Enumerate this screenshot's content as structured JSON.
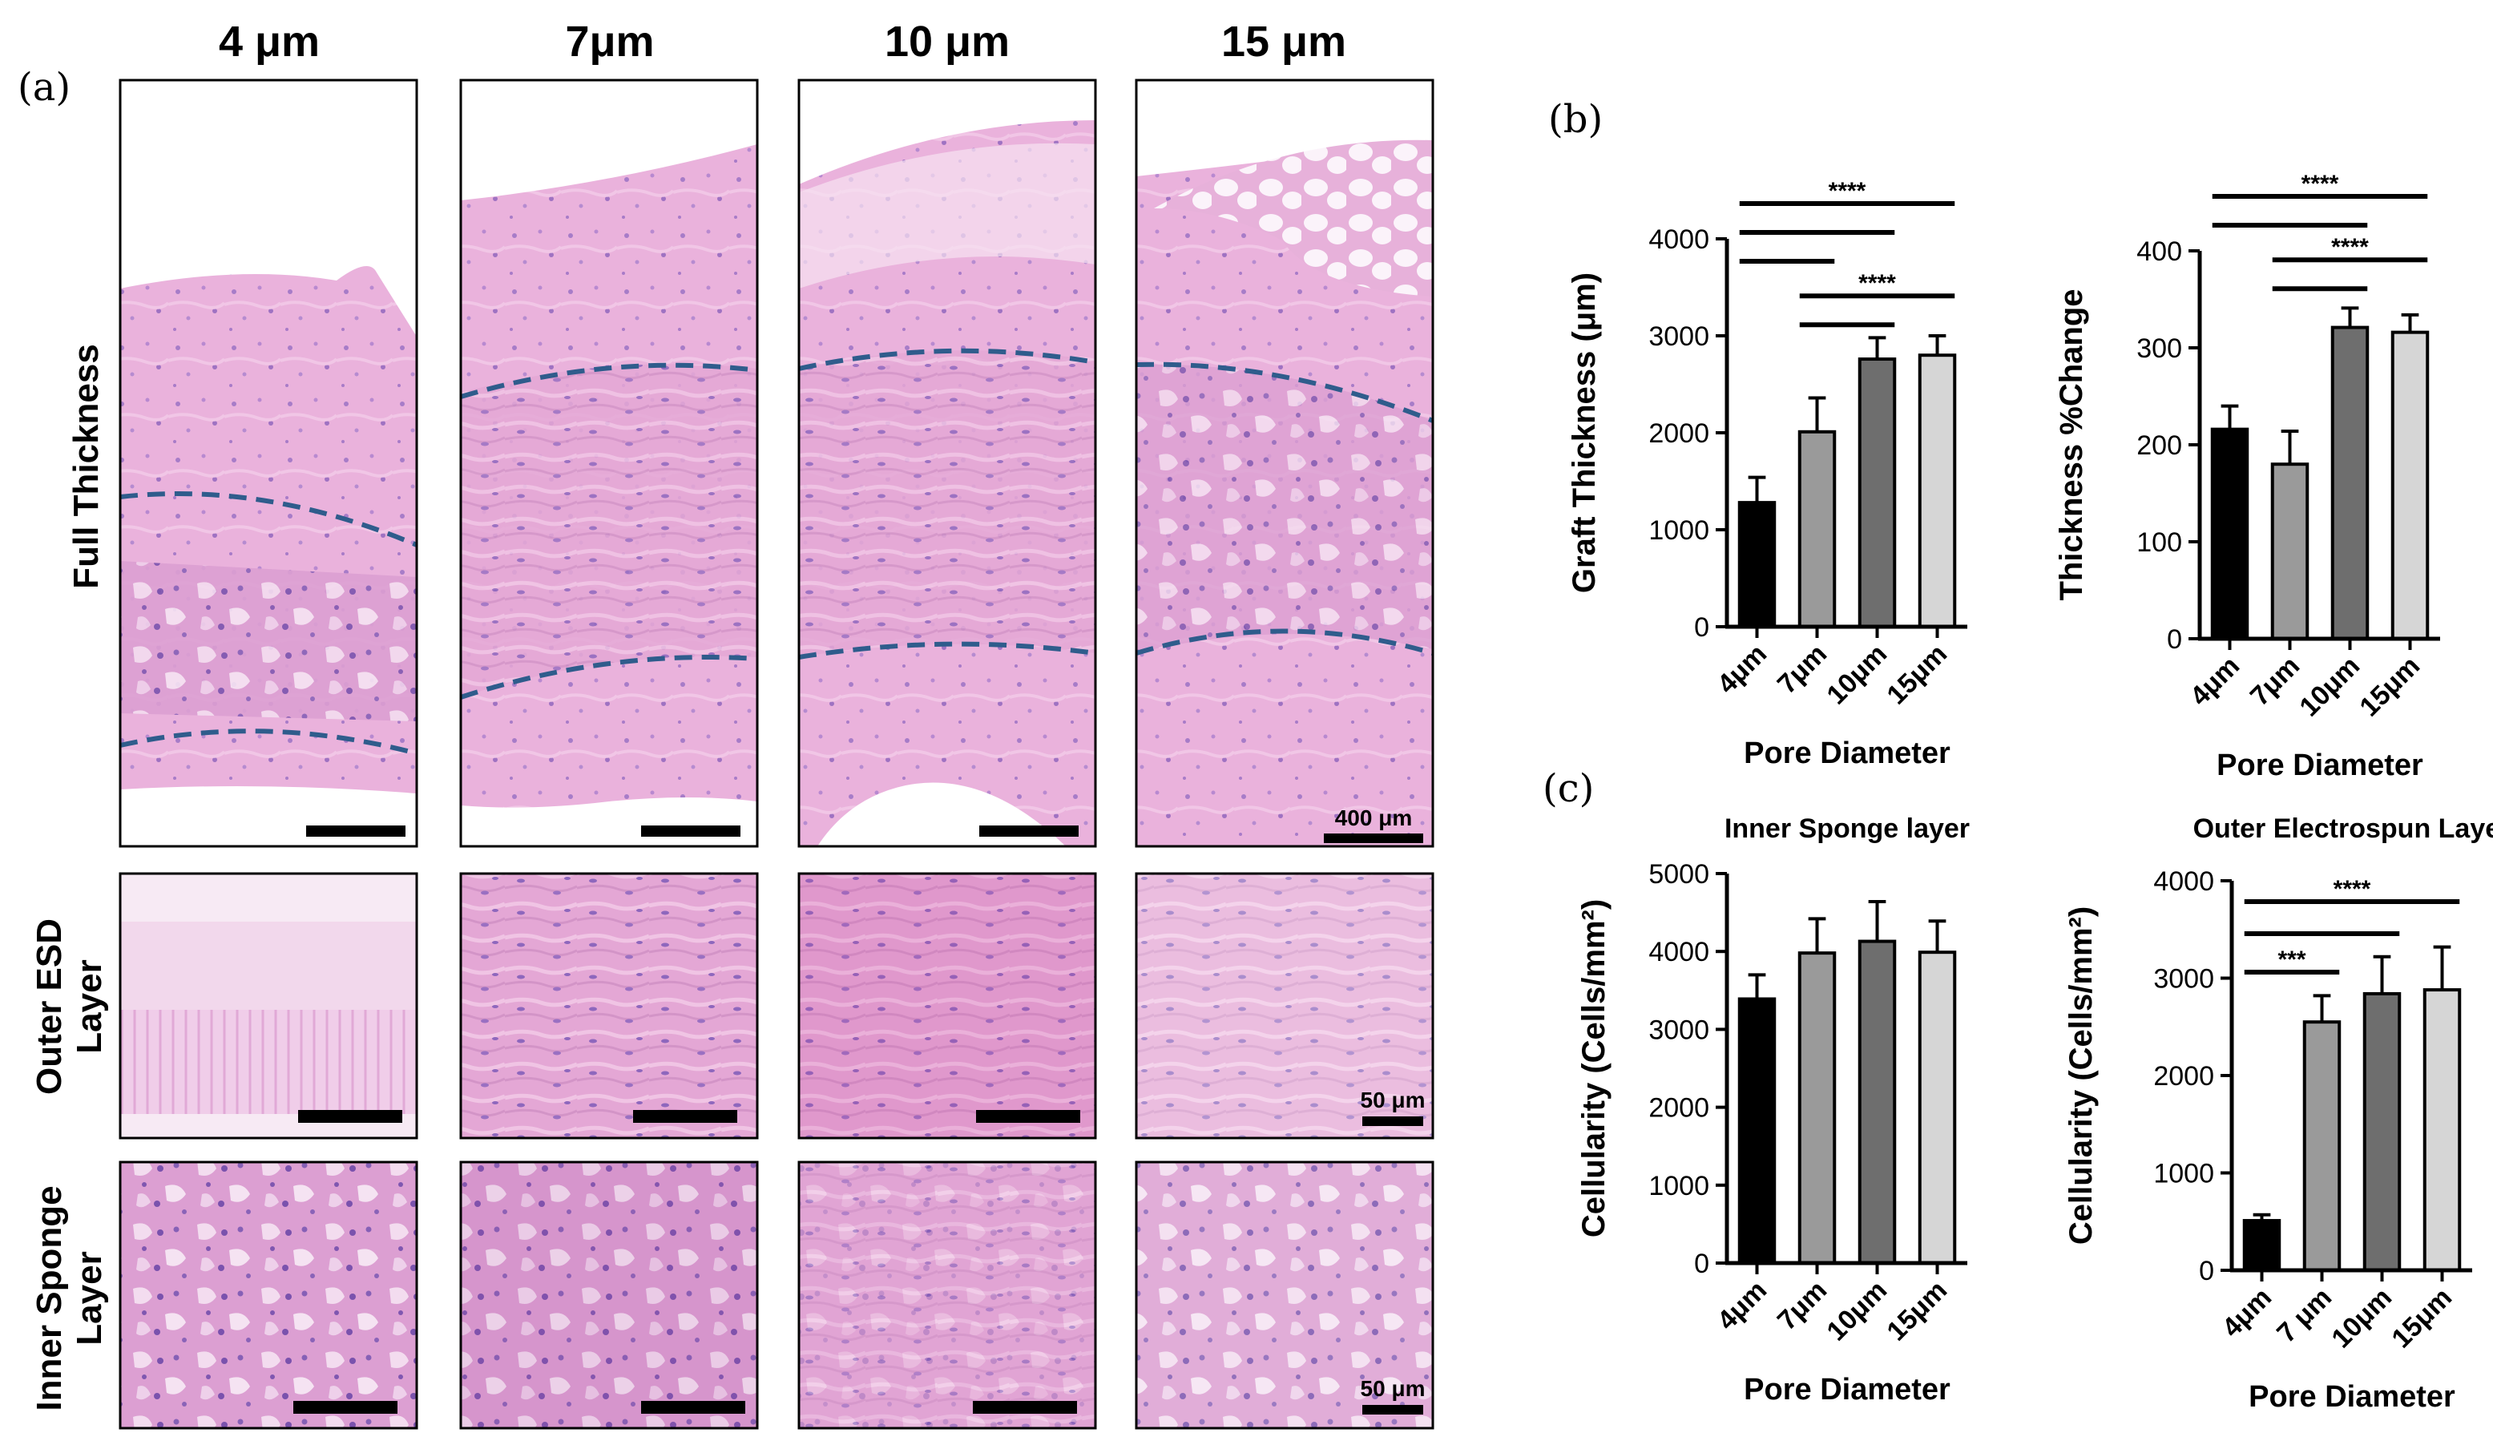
{
  "panel_a": {
    "label": "(a)",
    "columns": [
      "4 μm",
      "7μm",
      "10 μm",
      "15 μm"
    ],
    "rows": [
      "Full Thickness",
      "Outer ESD Layer",
      "Inner Sponge Layer"
    ],
    "rows_split": [
      [
        "Full Thickness"
      ],
      [
        "Outer ESD",
        "Layer"
      ],
      [
        "Inner Sponge",
        "Layer"
      ]
    ],
    "scale_bars": {
      "full_thickness": "400 μm",
      "outer_esd": "50 μm",
      "inner_sponge": "50 μm"
    },
    "colors": {
      "tissue_pink": "#e8a9d6",
      "nuclei_purple": "#8a5fb5",
      "boundary_dash": "#2f5c8c",
      "adipose": "#fbf3fa"
    }
  },
  "panel_b_label": "(b)",
  "panel_c_label": "(c)",
  "chart_data": [
    {
      "type": "bar",
      "title": "",
      "categories": [
        "4μm",
        "7μm",
        "10μm",
        "15μm"
      ],
      "values": [
        1280,
        2010,
        2760,
        2800
      ],
      "errors": [
        260,
        350,
        220,
        200
      ],
      "xlabel": "Pore Diameter",
      "ylabel": "Graft Thickness (μm)",
      "ylim": [
        0,
        4000
      ],
      "yticks": [
        0,
        1000,
        2000,
        3000,
        4000
      ],
      "colors": [
        "#000000",
        "#9a9a9a",
        "#6e6e6e",
        "#d6d6d6"
      ],
      "significance": [
        {
          "label": "****",
          "brackets": [
            [
              0,
              3
            ],
            [
              0,
              2
            ],
            [
              0,
              1
            ]
          ]
        },
        {
          "label": "****",
          "brackets": [
            [
              1,
              3
            ],
            [
              1,
              2
            ]
          ]
        }
      ]
    },
    {
      "type": "bar",
      "title": "",
      "categories": [
        "4μm",
        "7μm",
        "10μm",
        "15μm"
      ],
      "values": [
        216,
        180,
        321,
        316
      ],
      "errors": [
        24,
        34,
        20,
        18
      ],
      "xlabel": "Pore Diameter",
      "ylabel": "Thickness %Change",
      "ylim": [
        0,
        400
      ],
      "yticks": [
        0,
        100,
        200,
        300,
        400
      ],
      "colors": [
        "#000000",
        "#9a9a9a",
        "#6e6e6e",
        "#d6d6d6"
      ],
      "significance": [
        {
          "label": "****",
          "brackets": [
            [
              0,
              3
            ],
            [
              0,
              2
            ]
          ]
        },
        {
          "label": "****",
          "brackets": [
            [
              1,
              3
            ],
            [
              1,
              2
            ]
          ]
        }
      ]
    },
    {
      "type": "bar",
      "title": "Inner Sponge layer",
      "categories": [
        "4μm",
        "7μm",
        "10μm",
        "15μm"
      ],
      "values": [
        3390,
        3980,
        4130,
        3990
      ],
      "errors": [
        310,
        440,
        510,
        400
      ],
      "xlabel": "Pore Diameter",
      "ylabel": "Cellularity (Cells/mm²)",
      "ylim": [
        0,
        5000
      ],
      "yticks": [
        0,
        1000,
        2000,
        3000,
        4000,
        5000
      ],
      "colors": [
        "#000000",
        "#9a9a9a",
        "#6e6e6e",
        "#d6d6d6"
      ],
      "significance": []
    },
    {
      "type": "bar",
      "title": "Outer Electrospun Layer",
      "categories": [
        "4μm",
        "7 μm",
        "10μm",
        "15μm"
      ],
      "values": [
        510,
        2550,
        2840,
        2880
      ],
      "errors": [
        60,
        270,
        380,
        440
      ],
      "xlabel": "Pore Diameter",
      "ylabel": "Cellularity (Cells/mm²)",
      "ylim": [
        0,
        4000
      ],
      "yticks": [
        0,
        1000,
        2000,
        3000,
        4000
      ],
      "colors": [
        "#000000",
        "#9a9a9a",
        "#6e6e6e",
        "#d6d6d6"
      ],
      "significance": [
        {
          "label": "****",
          "brackets": [
            [
              0,
              3
            ],
            [
              0,
              2
            ]
          ]
        },
        {
          "label": "***",
          "brackets": [
            [
              0,
              1
            ]
          ]
        }
      ]
    }
  ]
}
